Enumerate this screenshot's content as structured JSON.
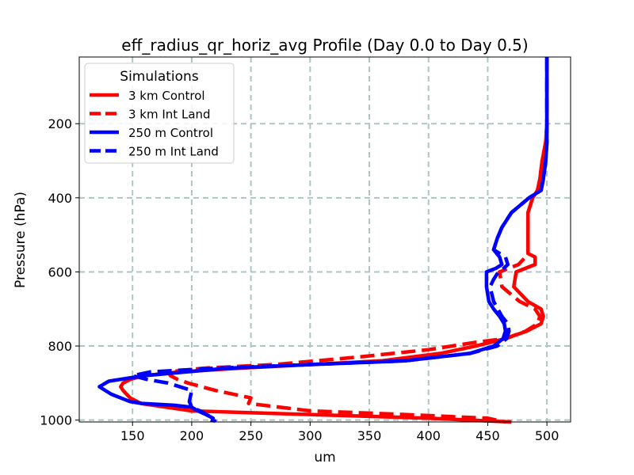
{
  "chart_data": {
    "type": "line",
    "title": "eff_radius_qr_horiz_avg Profile (Day 0.0 to Day 0.5)",
    "xlabel": "um",
    "ylabel": "Pressure (hPa)",
    "xlim": [
      105,
      520
    ],
    "ylim": [
      1005,
      20
    ],
    "y_inverted": true,
    "grid": true,
    "xticks": [
      150,
      200,
      250,
      300,
      350,
      400,
      450,
      500
    ],
    "yticks": [
      200,
      400,
      600,
      800,
      1000
    ],
    "legend": {
      "title": "Simulations",
      "placement": "top-left"
    },
    "series": [
      {
        "name": "3 km Control",
        "color": "#ff0000",
        "style": "solid",
        "x": [
          500,
          500,
          500,
          499,
          496,
          494,
          492,
          488,
          484,
          484,
          484,
          484,
          490,
          490,
          474,
          472,
          484,
          495,
          497,
          495,
          483,
          465,
          440,
          410,
          360,
          300,
          240,
          190,
          160,
          148,
          142,
          140,
          142,
          145,
          148,
          157,
          200,
          300,
          400,
          470
        ],
        "y": [
          20,
          100,
          200,
          250,
          300,
          350,
          380,
          400,
          440,
          480,
          520,
          550,
          560,
          580,
          600,
          640,
          680,
          700,
          720,
          740,
          760,
          780,
          800,
          820,
          840,
          850,
          860,
          870,
          880,
          890,
          900,
          910,
          920,
          930,
          940,
          955,
          975,
          985,
          995,
          1005
        ]
      },
      {
        "name": "3 km Int Land",
        "color": "#ff0000",
        "style": "dashed",
        "x": [
          500,
          500,
          500,
          499,
          496,
          494,
          492,
          488,
          484,
          484,
          484,
          484,
          482,
          476,
          460,
          462,
          477,
          490,
          494,
          492,
          482,
          465,
          440,
          400,
          340,
          270,
          210,
          180,
          182,
          188,
          197,
          220,
          250,
          248,
          300,
          380,
          450,
          465
        ],
        "y": [
          20,
          100,
          200,
          250,
          300,
          350,
          380,
          400,
          440,
          480,
          520,
          550,
          560,
          580,
          600,
          640,
          680,
          700,
          720,
          740,
          760,
          780,
          790,
          810,
          830,
          850,
          860,
          870,
          880,
          890,
          900,
          920,
          940,
          955,
          975,
          985,
          995,
          1005
        ]
      },
      {
        "name": "250 m Control",
        "color": "#0000ff",
        "style": "solid",
        "x": [
          500,
          500,
          500,
          500,
          499,
          497,
          495,
          485,
          470,
          462,
          458,
          455,
          460,
          462,
          457,
          449,
          449,
          451,
          455,
          460,
          464,
          465,
          463,
          455,
          435,
          380,
          300,
          230,
          160,
          130,
          122,
          132,
          148,
          158,
          185,
          200,
          205,
          212,
          218,
          217
        ],
        "y": [
          20,
          100,
          200,
          250,
          300,
          350,
          380,
          400,
          440,
          480,
          510,
          540,
          560,
          580,
          590,
          600,
          640,
          680,
          700,
          720,
          740,
          760,
          780,
          800,
          820,
          840,
          850,
          860,
          880,
          895,
          910,
          930,
          950,
          955,
          960,
          965,
          975,
          985,
          995,
          1005
        ]
      },
      {
        "name": "250 m Int Land",
        "color": "#0000ff",
        "style": "dashed",
        "x": [
          500,
          500,
          500,
          500,
          499,
          497,
          495,
          485,
          470,
          462,
          458,
          455,
          465,
          467,
          462,
          458,
          455,
          452,
          455,
          462,
          467,
          468,
          466,
          458,
          435,
          380,
          300,
          220,
          165,
          150,
          162,
          180,
          200,
          198,
          200,
          210,
          218,
          220
        ],
        "y": [
          20,
          100,
          200,
          250,
          300,
          350,
          380,
          400,
          440,
          480,
          510,
          540,
          560,
          580,
          595,
          605,
          620,
          640,
          680,
          720,
          740,
          760,
          780,
          800,
          820,
          840,
          850,
          860,
          870,
          880,
          890,
          900,
          920,
          950,
          965,
          980,
          995,
          1005
        ]
      }
    ]
  }
}
